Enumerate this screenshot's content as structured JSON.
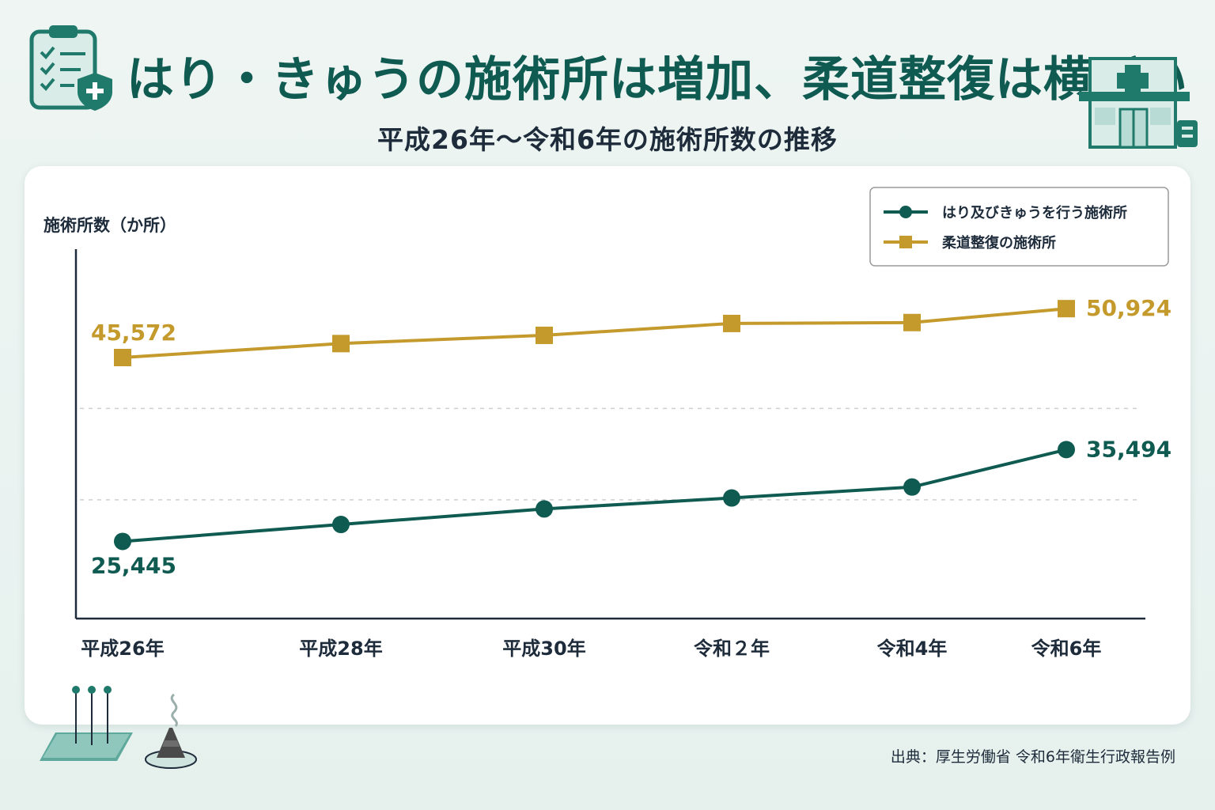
{
  "header": {
    "title": "はり・きゅうの施術所は増加、柔道整復は横ばい",
    "subtitle": "平成26年～令和6年の施術所数の推移"
  },
  "source": "出典：厚生労働省 令和6年衛生行政報告例",
  "icons": [
    "clipboard-medical-icon",
    "clinic-building-icon",
    "acupuncture-needles-icon",
    "moxa-cone-icon"
  ],
  "colors": {
    "hari": "#0f5a51",
    "judo": "#c49a2c",
    "title": "#0f5a51",
    "axis": "#1d2b3a"
  },
  "chart_data": {
    "type": "line",
    "ylabel": "施術所数（か所）",
    "xlabel": "",
    "categories": [
      "平成26年",
      "平成28年",
      "平成30年",
      "令和２年",
      "令和4年",
      "令和6年"
    ],
    "ylim": [
      17000,
      57000
    ],
    "grid": "dashed horizontal",
    "legend_position": "top-right",
    "series": [
      {
        "name": "はり及びきゅうを行う施術所",
        "marker": "circle",
        "values": [
          25445,
          27300,
          29000,
          30200,
          31400,
          35494
        ],
        "labels": [
          "25,445",
          "",
          "",
          "",
          "",
          "35,494"
        ]
      },
      {
        "name": "柔道整復の施術所",
        "marker": "square",
        "values": [
          45572,
          47100,
          48000,
          49300,
          49400,
          50924
        ],
        "labels": [
          "45,572",
          "",
          "",
          "",
          "",
          "50,924"
        ]
      }
    ]
  }
}
